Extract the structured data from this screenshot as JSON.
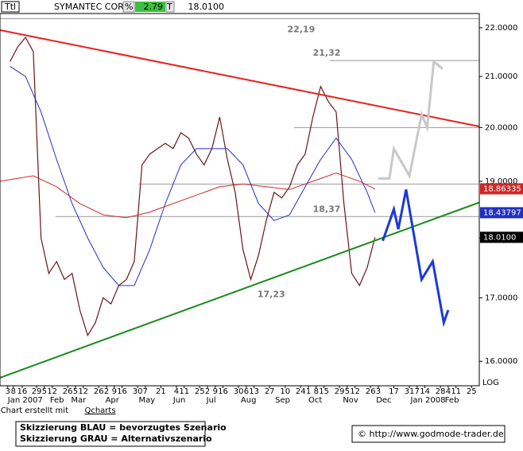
{
  "header": {
    "symbol": "Ttl",
    "name": "SYMANTEC CORP",
    "pct_label": "%",
    "change": "2.79",
    "t_label": "T",
    "last": "18.0100"
  },
  "chart_data": {
    "type": "line",
    "log_scale": true,
    "grid": false,
    "xlim": [
      "2006-12-27",
      "2008-03-03"
    ],
    "ylim": [
      15.63,
      22.3
    ],
    "yticks": [
      {
        "value": 16,
        "label": "16.0000"
      },
      {
        "value": 17,
        "label": "17.0000"
      },
      {
        "value": 18,
        "label": "18.0000"
      },
      {
        "value": 19,
        "label": "19.0000"
      },
      {
        "value": 20,
        "label": "20.0000"
      },
      {
        "value": 21,
        "label": "21.0000"
      },
      {
        "value": 22,
        "label": "22.0000"
      }
    ],
    "scale_label": "LOG",
    "xticks": [
      {
        "value": "2007-01-03",
        "label": "3"
      },
      {
        "value": "2007-01-08",
        "label": "8"
      },
      {
        "value": "2007-01-16",
        "label": "16"
      },
      {
        "value": "2007-01-29",
        "label": "29"
      },
      {
        "value": "2007-02-05",
        "label": "5"
      },
      {
        "value": "2007-02-12",
        "label": "12"
      },
      {
        "value": "2007-02-26",
        "label": "26"
      },
      {
        "value": "2007-03-05",
        "label": "5"
      },
      {
        "value": "2007-03-12",
        "label": "12"
      },
      {
        "value": "2007-03-26",
        "label": "26"
      },
      {
        "value": "2007-04-02",
        "label": "2"
      },
      {
        "value": "2007-04-09",
        "label": "9"
      },
      {
        "value": "2007-04-16",
        "label": "16"
      },
      {
        "value": "2007-04-30",
        "label": "30"
      },
      {
        "value": "2007-05-07",
        "label": "7"
      },
      {
        "value": "2007-05-21",
        "label": "21"
      },
      {
        "value": "2007-06-04",
        "label": "4"
      },
      {
        "value": "2007-06-11",
        "label": "11"
      },
      {
        "value": "2007-06-25",
        "label": "25"
      },
      {
        "value": "2007-07-02",
        "label": "2"
      },
      {
        "value": "2007-07-09",
        "label": "9"
      },
      {
        "value": "2007-07-16",
        "label": "16"
      },
      {
        "value": "2007-07-30",
        "label": "30"
      },
      {
        "value": "2007-08-06",
        "label": "6"
      },
      {
        "value": "2007-08-13",
        "label": "13"
      },
      {
        "value": "2007-08-27",
        "label": "27"
      },
      {
        "value": "2007-09-10",
        "label": "10"
      },
      {
        "value": "2007-09-24",
        "label": "24"
      },
      {
        "value": "2007-10-01",
        "label": "1"
      },
      {
        "value": "2007-10-08",
        "label": "8"
      },
      {
        "value": "2007-10-15",
        "label": "15"
      },
      {
        "value": "2007-10-29",
        "label": "29"
      },
      {
        "value": "2007-11-05",
        "label": "5"
      },
      {
        "value": "2007-11-12",
        "label": "12"
      },
      {
        "value": "2007-11-26",
        "label": "26"
      },
      {
        "value": "2007-12-03",
        "label": "3"
      },
      {
        "value": "2007-12-17",
        "label": "17"
      },
      {
        "value": "2007-12-31",
        "label": "31"
      },
      {
        "value": "2008-01-07",
        "label": "7"
      },
      {
        "value": "2008-01-14",
        "label": "14"
      },
      {
        "value": "2008-01-28",
        "label": "28"
      },
      {
        "value": "2008-02-04",
        "label": "4"
      },
      {
        "value": "2008-02-11",
        "label": "11"
      },
      {
        "value": "2008-02-25",
        "label": "25"
      }
    ],
    "month_labels": [
      {
        "value": "2007-01-03",
        "label": "Jan 2007"
      },
      {
        "value": "2007-02-10",
        "label": "Feb"
      },
      {
        "value": "2007-03-01",
        "label": "Mar"
      },
      {
        "value": "2007-04-01",
        "label": "Apr"
      },
      {
        "value": "2007-05-01",
        "label": "May"
      },
      {
        "value": "2007-06-01",
        "label": "Jun"
      },
      {
        "value": "2007-07-01",
        "label": "Jul"
      },
      {
        "value": "2007-08-01",
        "label": "Aug"
      },
      {
        "value": "2007-09-01",
        "label": "Sep"
      },
      {
        "value": "2007-10-01",
        "label": "Oct"
      },
      {
        "value": "2007-11-01",
        "label": "Nov"
      },
      {
        "value": "2007-12-01",
        "label": "Dec"
      },
      {
        "value": "2008-01-01",
        "label": "Jan 2008"
      },
      {
        "value": "2008-02-01",
        "label": "Feb"
      }
    ],
    "series": [
      {
        "color": "#6a1515",
        "x": [
          "2007-01-05",
          "2007-01-12",
          "2007-01-19",
          "2007-01-26",
          "2007-02-02",
          "2007-02-09",
          "2007-02-16",
          "2007-02-23",
          "2007-03-02",
          "2007-03-09",
          "2007-03-16",
          "2007-03-23",
          "2007-03-30",
          "2007-04-06",
          "2007-04-13",
          "2007-04-20",
          "2007-04-27",
          "2007-05-04",
          "2007-05-11",
          "2007-05-18",
          "2007-05-25",
          "2007-06-01",
          "2007-06-08",
          "2007-06-15",
          "2007-06-22",
          "2007-06-29",
          "2007-07-06",
          "2007-07-13",
          "2007-07-20",
          "2007-07-27",
          "2007-08-03",
          "2007-08-10",
          "2007-08-17",
          "2007-08-24",
          "2007-08-31",
          "2007-09-07",
          "2007-09-14",
          "2007-09-21",
          "2007-09-28",
          "2007-10-05",
          "2007-10-12",
          "2007-10-19",
          "2007-10-26",
          "2007-11-02",
          "2007-11-09",
          "2007-11-16",
          "2007-11-23",
          "2007-11-30"
        ],
        "values": [
          21.3,
          21.6,
          21.8,
          21.5,
          18.0,
          17.4,
          17.6,
          17.3,
          17.4,
          16.8,
          16.4,
          16.6,
          17.0,
          16.9,
          17.2,
          17.3,
          17.6,
          19.3,
          19.5,
          19.6,
          19.7,
          19.6,
          19.9,
          19.8,
          19.5,
          19.3,
          19.6,
          20.2,
          19.4,
          18.8,
          17.8,
          17.3,
          17.7,
          18.3,
          18.8,
          18.7,
          18.9,
          19.3,
          19.5,
          20.2,
          20.8,
          20.5,
          20.3,
          18.6,
          17.4,
          17.2,
          17.5,
          18.01
        ]
      },
      {
        "color": "#2030c0",
        "x": [
          "2007-01-05",
          "2007-01-19",
          "2007-02-02",
          "2007-02-16",
          "2007-03-02",
          "2007-03-16",
          "2007-03-30",
          "2007-04-13",
          "2007-04-27",
          "2007-05-11",
          "2007-05-25",
          "2007-06-08",
          "2007-06-22",
          "2007-07-06",
          "2007-07-20",
          "2007-08-03",
          "2007-08-17",
          "2007-08-31",
          "2007-09-14",
          "2007-09-28",
          "2007-10-12",
          "2007-10-26",
          "2007-11-09",
          "2007-11-23",
          "2007-11-30"
        ],
        "values": [
          21.2,
          21.0,
          20.3,
          19.4,
          18.6,
          18.0,
          17.5,
          17.2,
          17.2,
          17.8,
          18.6,
          19.3,
          19.6,
          19.6,
          19.6,
          19.3,
          18.6,
          18.3,
          18.4,
          18.9,
          19.4,
          19.8,
          19.4,
          18.8,
          18.44
        ]
      },
      {
        "color": "#d02828",
        "x": [
          "2006-12-27",
          "2007-01-26",
          "2007-02-16",
          "2007-03-09",
          "2007-03-30",
          "2007-04-20",
          "2007-05-11",
          "2007-06-01",
          "2007-06-22",
          "2007-07-13",
          "2007-08-03",
          "2007-08-24",
          "2007-09-14",
          "2007-10-05",
          "2007-10-26",
          "2007-11-16",
          "2007-11-30"
        ],
        "values": [
          19.0,
          19.1,
          18.9,
          18.6,
          18.4,
          18.35,
          18.45,
          18.6,
          18.75,
          18.9,
          18.95,
          18.9,
          18.85,
          19.0,
          19.15,
          19.0,
          18.86
        ]
      },
      {
        "color": "#e82020",
        "x": [
          "2006-12-27",
          "2008-03-03"
        ],
        "values": [
          21.95,
          20.02
        ]
      },
      {
        "color": "#1a8a1a",
        "x": [
          "2006-12-27",
          "2008-03-03"
        ],
        "values": [
          15.75,
          18.62
        ]
      },
      {
        "color": "#c8c8c8",
        "x": [
          "2007-12-03",
          "2007-12-13",
          "2007-12-17",
          "2007-12-31",
          "2008-01-11",
          "2008-01-16",
          "2008-01-22",
          "2008-01-30"
        ],
        "values": [
          19.05,
          19.05,
          19.6,
          19.1,
          20.25,
          20.0,
          21.3,
          21.15
        ]
      },
      {
        "color": "#1a3ad8",
        "x": [
          "2007-12-07",
          "2007-12-17",
          "2007-12-21",
          "2007-12-28",
          "2008-01-11",
          "2008-01-21",
          "2008-01-31",
          "2008-02-04"
        ],
        "values": [
          17.95,
          18.5,
          18.15,
          18.85,
          17.3,
          17.6,
          16.6,
          16.8
        ]
      }
    ],
    "levels": [
      {
        "value": 22.19,
        "label": "22,19",
        "from": "2006-12-27",
        "label_at": "2007-09-12",
        "label_side": "below"
      },
      {
        "value": 21.32,
        "label": "21,32",
        "from": "2007-10-20",
        "label_at": "2007-10-05",
        "label_side": "above"
      },
      {
        "value": 20.0,
        "from": "2007-09-18"
      },
      {
        "value": 18.95,
        "from": "2007-05-01"
      },
      {
        "value": 18.37,
        "label": "18,37",
        "from": "2007-02-15",
        "label_at": "2007-10-05",
        "label_side": "above"
      },
      {
        "value": 17.23,
        "label": "17,23",
        "label_at": "2007-08-16",
        "label_side": "below"
      }
    ],
    "value_boxes": [
      {
        "value": 18.86335,
        "label": "18.86335",
        "color": "#d02828"
      },
      {
        "value": 18.43797,
        "label": "18.43797",
        "color": "#2030c0"
      },
      {
        "value": 18.01,
        "label": "18.0100",
        "color": "#000000"
      }
    ]
  },
  "footer": {
    "credit": "Chart erstellt mit",
    "credit_link": "Qcharts",
    "notes": [
      "Skizzierung BLAU = bevorzugtes Szenario",
      "Skizzierung GRAU = Alternativszenario"
    ],
    "source": "© http://www.godmode-trader.de"
  }
}
